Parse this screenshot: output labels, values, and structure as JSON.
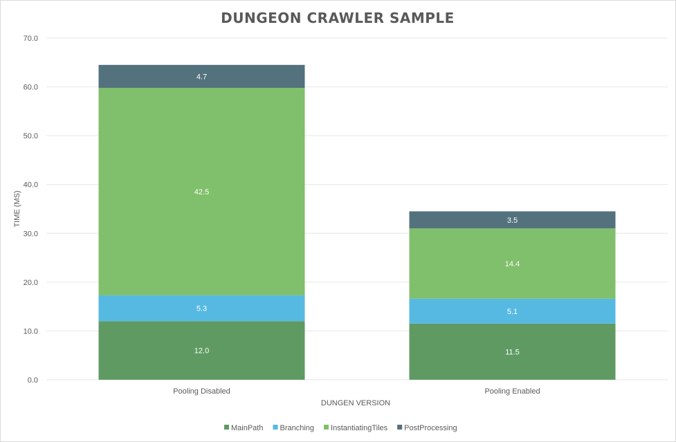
{
  "chart_data": {
    "type": "bar",
    "stacked": true,
    "title": "DUNGEON CRAWLER SAMPLE",
    "xlabel": "DUNGEN VERSION",
    "ylabel": "TIME (MS)",
    "ylim": [
      0,
      70
    ],
    "yticks": [
      "0.0",
      "10.0",
      "20.0",
      "30.0",
      "40.0",
      "50.0",
      "60.0",
      "70.0"
    ],
    "grid": true,
    "legend": "bottom",
    "categories": [
      "Pooling Disabled",
      "Pooling Enabled"
    ],
    "series": [
      {
        "name": "MainPath",
        "values": [
          12.0,
          11.5
        ],
        "color": "#5f9a62"
      },
      {
        "name": "Branching",
        "values": [
          5.3,
          5.1
        ],
        "color": "#56b9e2"
      },
      {
        "name": "InstantiatingTiles",
        "values": [
          42.5,
          14.4
        ],
        "color": "#80bf6b"
      },
      {
        "name": "PostProcessing",
        "values": [
          4.7,
          3.5
        ],
        "color": "#53727e"
      }
    ]
  }
}
